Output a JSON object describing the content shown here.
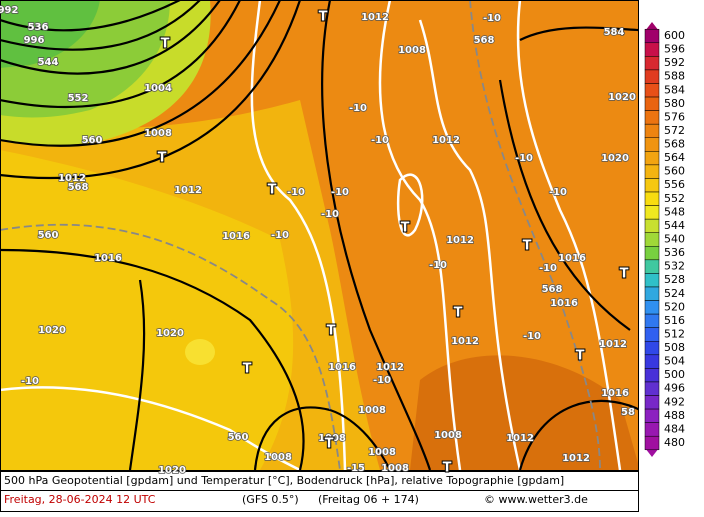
{
  "footer": {
    "description": "500 hPa Geopotential [gpdam] und Temperatur [°C], Bodendruck [hPa], relative Topographie [gpdam]",
    "date": "Freitag, 28-06-2024  12 UTC",
    "model": "(GFS 0.5°)",
    "run": "(Freitag 06 + 174)",
    "credit": "© www.wetter3.de"
  },
  "legend": {
    "levels": [
      600,
      596,
      592,
      588,
      584,
      580,
      576,
      572,
      568,
      564,
      560,
      556,
      552,
      548,
      544,
      540,
      536,
      532,
      528,
      524,
      520,
      516,
      512,
      508,
      504,
      500,
      496,
      492,
      488,
      484,
      480
    ],
    "colors": [
      "#a0006a",
      "#c8104a",
      "#d82830",
      "#e03c20",
      "#e85018",
      "#ea6410",
      "#ec7410",
      "#ee8410",
      "#f09410",
      "#f2a410",
      "#f4b410",
      "#f6c810",
      "#f8dc10",
      "#f0e820",
      "#c8e030",
      "#a0d838",
      "#78d040",
      "#40c8a0",
      "#30c0c8",
      "#30a8e0",
      "#3090f0",
      "#3078f0",
      "#3060f0",
      "#3048e8",
      "#3838e0",
      "#4830d8",
      "#6030d0",
      "#7828c8",
      "#8c20c0",
      "#9818b0",
      "#a010a0"
    ]
  },
  "map": {
    "labels": [
      "992",
      "536",
      "996",
      "544",
      "552",
      "1004",
      "560",
      "1008",
      "1012",
      "568",
      "1012",
      "1016",
      "1016",
      "560",
      "1020",
      "1020",
      "-10",
      "1012",
      "1008",
      "568",
      "-10",
      "584",
      "1020",
      "-10",
      "-10",
      "1012",
      "-10",
      "1020",
      "-10",
      "-10",
      "-10",
      "-10",
      "-10",
      "1012",
      "-10",
      "-10",
      "1016",
      "1016",
      "568",
      "-10",
      "1012",
      "1012",
      "1016",
      "1012",
      "-10",
      "1008",
      "1008",
      "1008",
      "1008",
      "1012",
      "1016",
      "1012",
      "-15",
      "1008",
      "1008",
      "560",
      "1020",
      "58"
    ],
    "pressure_centers": [
      "T",
      "T",
      "T",
      "T",
      "T",
      "T",
      "T",
      "T",
      "T",
      "T",
      "T",
      "T",
      "T"
    ]
  }
}
